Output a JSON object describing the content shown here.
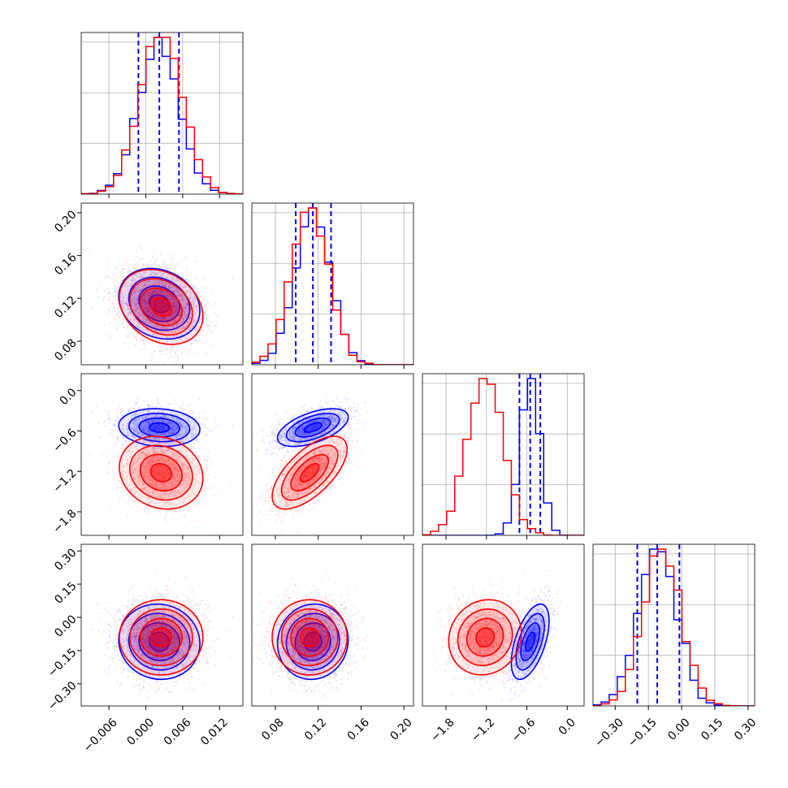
{
  "figure": {
    "type": "corner-plot",
    "n_params": 4
  },
  "colors": {
    "blue": "#0000ff",
    "red": "#ff0000",
    "grid": "#b0b0b0",
    "frame": "#000000"
  },
  "chart_data": {
    "type": "corner",
    "parameters": [
      {
        "range": [
          -0.0105,
          0.0158
        ],
        "ticks": [
          -0.006,
          0.0,
          0.006,
          0.012
        ],
        "tick_labels": [
          "−0.006",
          "0.000",
          "0.006",
          "0.012"
        ]
      },
      {
        "range": [
          0.058,
          0.209
        ],
        "ticks": [
          0.08,
          0.12,
          0.16,
          0.2
        ],
        "tick_labels": [
          "0.08",
          "0.12",
          "0.16",
          "0.20"
        ]
      },
      {
        "range": [
          -2.15,
          0.25
        ],
        "ticks": [
          -1.8,
          -1.2,
          -0.6,
          0.0
        ],
        "tick_labels": [
          "−1.8",
          "−1.2",
          "−0.6",
          "0.0"
        ]
      },
      {
        "range": [
          -0.4,
          0.33
        ],
        "ticks": [
          -0.3,
          -0.15,
          0.0,
          0.15,
          0.3
        ],
        "tick_labels": [
          "−0.30",
          "−0.15",
          "0.00",
          "0.15",
          "0.30"
        ]
      }
    ],
    "series": [
      {
        "color": "#0000ff",
        "means": [
          0.0022,
          0.115,
          -0.55,
          -0.11
        ],
        "sds": [
          0.0033,
          0.0165,
          0.14,
          0.085
        ],
        "corrs": [
          [
            0,
            1,
            -0.2
          ],
          [
            0,
            2,
            -0.1
          ],
          [
            0,
            3,
            -0.05
          ],
          [
            1,
            2,
            0.55
          ],
          [
            1,
            3,
            0.05
          ],
          [
            2,
            3,
            0.55
          ]
        ],
        "quantiles": [
          [
            -0.0012,
            0.0022,
            0.0054
          ],
          [
            0.099,
            0.115,
            0.132
          ],
          [
            -0.71,
            -0.55,
            -0.4
          ],
          [
            -0.2,
            -0.11,
            -0.01
          ]
        ]
      },
      {
        "color": "#ff0000",
        "means": [
          0.0025,
          0.112,
          -1.22,
          -0.09
        ],
        "sds": [
          0.0034,
          0.0175,
          0.27,
          0.085
        ],
        "corrs": [
          [
            0,
            1,
            -0.25
          ],
          [
            0,
            2,
            -0.15
          ],
          [
            0,
            3,
            0.0
          ],
          [
            1,
            2,
            0.65
          ],
          [
            1,
            3,
            0.0
          ],
          [
            2,
            3,
            0.1
          ]
        ]
      }
    ],
    "diag_ylims": [
      [
        0,
        1.0
      ],
      [
        0,
        1.0
      ],
      [
        0,
        1.0
      ],
      [
        0,
        1.0
      ]
    ]
  }
}
